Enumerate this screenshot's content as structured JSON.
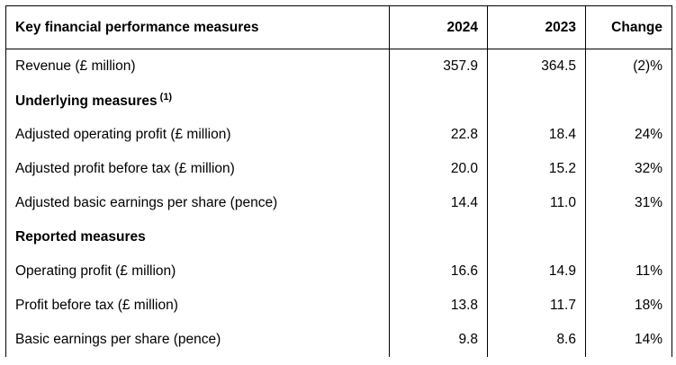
{
  "table": {
    "headers": {
      "label": "Key financial performance measures",
      "col_2024": "2024",
      "col_2023": "2023",
      "change": "Change"
    },
    "rows": [
      {
        "type": "data",
        "label": "Revenue (£ million)",
        "v2024": "357.9",
        "v2023": "364.5",
        "change": "(2)%"
      },
      {
        "type": "section",
        "label": "Underlying measures",
        "note": "(1)"
      },
      {
        "type": "data",
        "label": "Adjusted operating profit (£ million)",
        "v2024": "22.8",
        "v2023": "18.4",
        "change": "24%"
      },
      {
        "type": "data",
        "label": "Adjusted profit before tax (£ million)",
        "v2024": "20.0",
        "v2023": "15.2",
        "change": "32%"
      },
      {
        "type": "data",
        "label": "Adjusted basic earnings per share (pence)",
        "v2024": "14.4",
        "v2023": "11.0",
        "change": "31%"
      },
      {
        "type": "section",
        "label": "Reported measures"
      },
      {
        "type": "data",
        "label": "Operating profit (£ million)",
        "v2024": "16.6",
        "v2023": "14.9",
        "change": "11%"
      },
      {
        "type": "data",
        "label": "Profit before tax (£ million)",
        "v2024": "13.8",
        "v2023": "11.7",
        "change": "18%"
      },
      {
        "type": "data",
        "label": "Basic earnings per share (pence)",
        "v2024": "9.8",
        "v2023": "8.6",
        "change": "14%"
      }
    ]
  }
}
